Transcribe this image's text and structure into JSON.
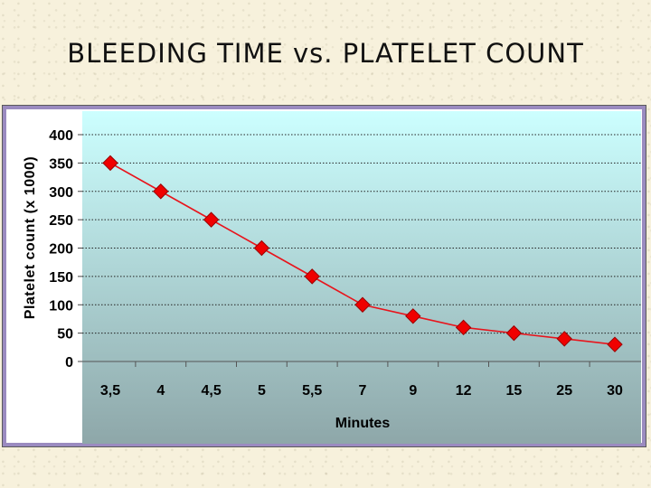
{
  "slide": {
    "title": "BLEEDING TIME vs. PLATELET COUNT"
  },
  "chart_data": {
    "type": "line",
    "title": "BLEEDING TIME vs. PLATELET COUNT",
    "xlabel": "Minutes",
    "ylabel": "Platelet count (x 1000)",
    "categories": [
      "3,5",
      "4",
      "4,5",
      "5",
      "5,5",
      "7",
      "9",
      "12",
      "15",
      "25",
      "30"
    ],
    "series": [
      {
        "name": "Platelet count",
        "values": [
          350,
          300,
          250,
          200,
          150,
          100,
          80,
          60,
          50,
          40,
          30
        ]
      }
    ],
    "yticks": [
      "0",
      "50",
      "100",
      "150",
      "200",
      "250",
      "300",
      "350",
      "400"
    ],
    "ylim": [
      0,
      400
    ],
    "grid": "horizontal dotted",
    "legend": "none",
    "colors": {
      "line": "#e8141c",
      "marker": "#f00000",
      "marker_outline": "#9a0000",
      "plot_top": "#ccffff",
      "plot_bottom": "#8ea7a9"
    }
  }
}
